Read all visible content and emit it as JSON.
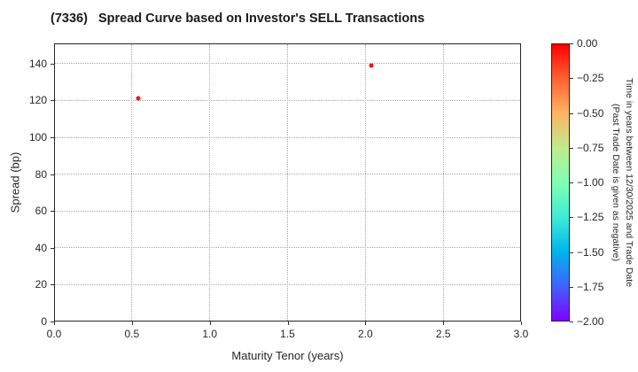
{
  "title": "(7336)   Spread Curve based on Investor's SELL Transactions",
  "chart_data": {
    "type": "scatter",
    "title": "(7336)   Spread Curve based on Investor's SELL Transactions",
    "xlabel": "Maturity Tenor (years)",
    "ylabel": "Spread (bp)",
    "xlim": [
      0.0,
      3.0
    ],
    "ylim": [
      0,
      151
    ],
    "grid": true,
    "x_ticks": [
      {
        "value": 0.0,
        "label": "0.0"
      },
      {
        "value": 0.5,
        "label": "0.5"
      },
      {
        "value": 1.0,
        "label": "1.0"
      },
      {
        "value": 1.5,
        "label": "1.5"
      },
      {
        "value": 2.0,
        "label": "2.0"
      },
      {
        "value": 2.5,
        "label": "2.5"
      },
      {
        "value": 3.0,
        "label": "3.0"
      }
    ],
    "y_ticks": [
      {
        "value": 0,
        "label": "0"
      },
      {
        "value": 20,
        "label": "20"
      },
      {
        "value": 40,
        "label": "40"
      },
      {
        "value": 60,
        "label": "60"
      },
      {
        "value": 80,
        "label": "80"
      },
      {
        "value": 100,
        "label": "100"
      },
      {
        "value": 120,
        "label": "120"
      },
      {
        "value": 140,
        "label": "140"
      }
    ],
    "series": [
      {
        "name": "SELL transactions",
        "marker_color": "#f21212",
        "points": [
          {
            "x": 0.54,
            "y": 121,
            "time_value": 0.0
          },
          {
            "x": 2.04,
            "y": 139,
            "time_value": 0.0
          }
        ]
      }
    ],
    "colorbar": {
      "label_line1": "Time in years between 12/30/2025 and Trade Date",
      "label_line2": "(Past Trade Date is given as negative)",
      "range_top": 0.0,
      "range_bottom": -2.0,
      "ticks": [
        "0.00",
        "−0.25",
        "−0.50",
        "−0.75",
        "−1.00",
        "−1.25",
        "−1.50",
        "−1.75",
        "−2.00"
      ],
      "colormap": "rainbow",
      "gradient_stops": [
        "#ff0000",
        "#ff6232",
        "#ffb462",
        "#bfec8e",
        "#80ffb4",
        "#40ecd4",
        "#00b4ec",
        "#4062fa",
        "#8000ff"
      ]
    }
  }
}
